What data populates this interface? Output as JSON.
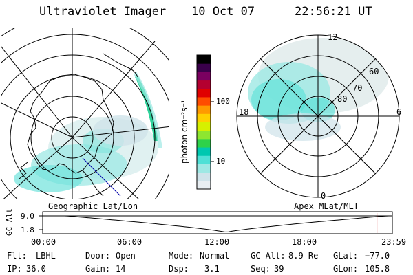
{
  "header": {
    "title": "Ultraviolet Imager",
    "date": "10 Oct 07",
    "time": "22:56:21 UT"
  },
  "left_map": {
    "label": "Geographic Lat/Lon"
  },
  "right_map": {
    "label": "Apex MLat/MLT",
    "mlt_labels": [
      "12",
      "18",
      "6",
      "0"
    ],
    "lat_labels": [
      "60",
      "70",
      "80"
    ]
  },
  "colorbar": {
    "unit": "photon cm⁻²s⁻¹",
    "ticks": [
      "100",
      "10"
    ],
    "colors": [
      "#e8eef2",
      "#cfe3ea",
      "#9ee8e4",
      "#4fe0d6",
      "#00c8b0",
      "#2ed24a",
      "#8ee630",
      "#d6f000",
      "#ffd000",
      "#ff9a00",
      "#ff4d00",
      "#e00000",
      "#b40030",
      "#7a0060",
      "#3a004a",
      "#000000"
    ]
  },
  "timeline": {
    "ylabel": "GC Alt",
    "yticks": [
      "9.0",
      "1.8"
    ],
    "xticks": [
      "00:00",
      "06:00",
      "12:00",
      "18:00",
      "23:59"
    ],
    "current_time_hours": 22.94
  },
  "info": {
    "flt_label": "Flt:",
    "flt_value": "LBHL",
    "ip_label": "IP:",
    "ip_value": "36.0",
    "door_label": "Door:",
    "door_value": "Open",
    "gain_label": "Gain:",
    "gain_value": "14",
    "mode_label": "Mode:",
    "mode_value": "Normal",
    "dsp_label": "Dsp:",
    "dsp_value": "3.1",
    "gcalt_label": "GC Alt:",
    "gcalt_value": "8.9 Re",
    "seq_label": "Seq:",
    "seq_value": "39",
    "glat_label": "GLat:",
    "glat_value": "−77.0",
    "glon_label": "GLon:",
    "glon_value": "105.8"
  }
}
